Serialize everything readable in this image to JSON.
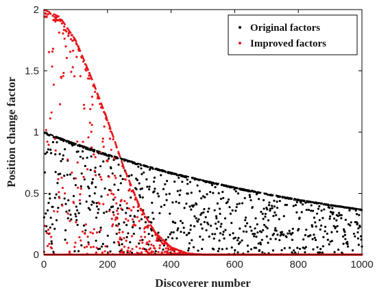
{
  "chart_data": {
    "type": "scatter",
    "title": "",
    "xlabel": "Discoverer number",
    "ylabel": "Position change  factor",
    "xlim": [
      0,
      1000
    ],
    "ylim": [
      0,
      2
    ],
    "xticks": [
      "0",
      "200",
      "400",
      "600",
      "800",
      "1000"
    ],
    "yticks": [
      "0",
      "0.5",
      "1",
      "1.5",
      "2"
    ],
    "grid": false,
    "legend_position": "top-right",
    "legend": [
      "Original factors",
      "Improved factors"
    ],
    "series": [
      {
        "name": "Original factors",
        "color": "#000000",
        "envelope": "decreasing exponential from 1.0 at x=0 to about 0.36 at x=1000",
        "envelope_points": [
          [
            0,
            1.0
          ],
          [
            100,
            0.905
          ],
          [
            200,
            0.819
          ],
          [
            300,
            0.741
          ],
          [
            400,
            0.67
          ],
          [
            500,
            0.607
          ],
          [
            600,
            0.549
          ],
          [
            700,
            0.497
          ],
          [
            800,
            0.449
          ],
          [
            900,
            0.407
          ],
          [
            1000,
            0.368
          ]
        ],
        "point_count": 1000,
        "distribution": "scattered uniformly between 0 and the envelope"
      },
      {
        "name": "Improved factors",
        "color": "#e8161b",
        "envelope": "cosine-shaped decay from 2.0 at x=0 to 0 near x=500",
        "envelope_points": [
          [
            0,
            2.0
          ],
          [
            50,
            1.94
          ],
          [
            100,
            1.75
          ],
          [
            150,
            1.44
          ],
          [
            200,
            1.1
          ],
          [
            250,
            0.72
          ],
          [
            300,
            0.4
          ],
          [
            350,
            0.18
          ],
          [
            400,
            0.06
          ],
          [
            450,
            0.01
          ],
          [
            500,
            0.0
          ],
          [
            1000,
            0.0
          ]
        ],
        "point_count": 1000,
        "distribution": "dense near the envelope and near zero; all points at 0 beyond about x=500"
      }
    ]
  }
}
